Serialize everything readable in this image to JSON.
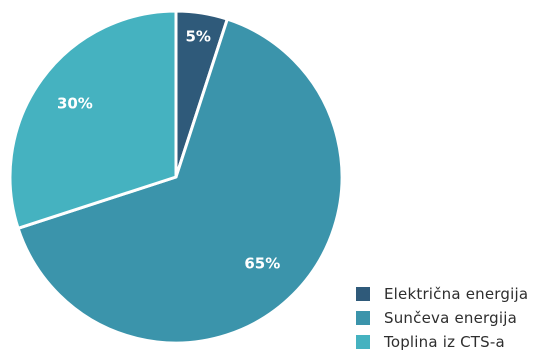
{
  "chart_data": {
    "type": "pie",
    "categories": [
      "Električna energija",
      "Sunčeva energija",
      "Toplina iz CTS-a"
    ],
    "values": [
      5,
      65,
      30
    ],
    "labels": [
      "5%",
      "65%",
      "30%"
    ],
    "colors": [
      "#2f5a7a",
      "#3b94ab",
      "#45b2c0"
    ],
    "start_angle_deg": 0,
    "direction": "clockwise",
    "legend_position": "bottom-right",
    "title": ""
  }
}
